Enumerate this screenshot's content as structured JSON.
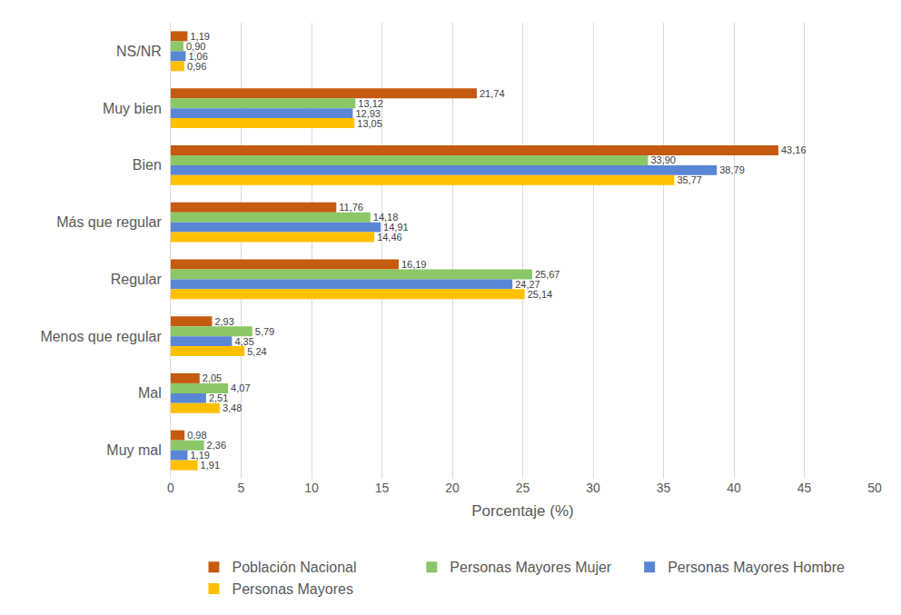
{
  "chart_data": {
    "type": "bar",
    "orientation": "horizontal",
    "xlabel": "Porcentaje (%)",
    "categories": [
      "NS/NR",
      "Muy bien",
      "Bien",
      "Más que regular",
      "Regular",
      "Menos que regular",
      "Mal",
      "Muy mal"
    ],
    "series": [
      {
        "name": "Población Nacional",
        "color": "#C55A11",
        "values": [
          1.19,
          21.74,
          43.16,
          11.76,
          16.19,
          2.93,
          2.05,
          0.98
        ],
        "value_labels": [
          "1,19",
          "21,74",
          "43,16",
          "11,76",
          "16,19",
          "2,93",
          "2,05",
          "0,98"
        ]
      },
      {
        "name": "Personas Mayores Mujer",
        "color": "#8BC766",
        "values": [
          0.9,
          13.12,
          33.9,
          14.18,
          25.67,
          5.79,
          4.07,
          2.36
        ],
        "value_labels": [
          "0,90",
          "13,12",
          "33,90",
          "14,18",
          "25,67",
          "5,79",
          "4,07",
          "2,36"
        ]
      },
      {
        "name": "Personas Mayores Hombre",
        "color": "#5A86D6",
        "values": [
          1.06,
          12.93,
          38.79,
          14.91,
          24.27,
          4.35,
          2.51,
          1.19
        ],
        "value_labels": [
          "1,06",
          "12,93",
          "38,79",
          "14,91",
          "24,27",
          "4,35",
          "2,51",
          "1,19"
        ]
      },
      {
        "name": "Personas Mayores",
        "color": "#FFC000",
        "values": [
          0.96,
          13.05,
          35.77,
          14.46,
          25.14,
          5.24,
          3.48,
          1.91
        ],
        "value_labels": [
          "0,96",
          "13,05",
          "35,77",
          "14,46",
          "25,14",
          "5,24",
          "3,48",
          "1,91"
        ]
      }
    ],
    "xlim": [
      0,
      50
    ],
    "xticks": [
      0,
      5,
      10,
      15,
      20,
      25,
      30,
      35,
      40,
      45,
      50
    ],
    "grid": true,
    "legend": "bottom",
    "data_labels": true
  }
}
